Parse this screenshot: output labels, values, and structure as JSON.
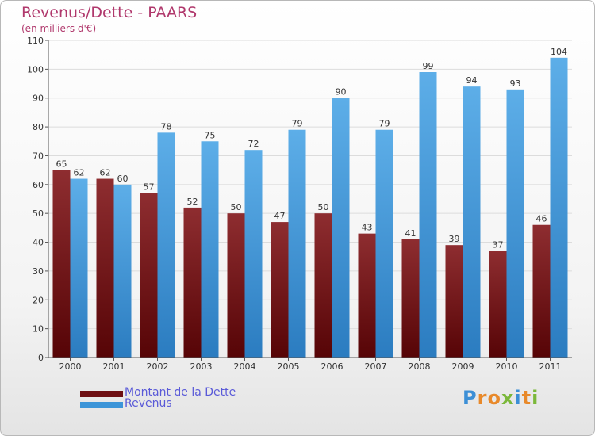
{
  "chart_data": {
    "type": "bar",
    "title": "Revenus/Dette - PAARS",
    "subtitle": "(en milliers d'€)",
    "categories": [
      "2000",
      "2001",
      "2002",
      "2003",
      "2004",
      "2005",
      "2006",
      "2007",
      "2008",
      "2009",
      "2010",
      "2011"
    ],
    "series": [
      {
        "name": "Montant de la Dette",
        "values": [
          65,
          62,
          57,
          52,
          50,
          47,
          50,
          43,
          41,
          39,
          37,
          46
        ],
        "color": "#6e0f12"
      },
      {
        "name": "Revenus",
        "values": [
          62,
          60,
          78,
          75,
          72,
          79,
          90,
          79,
          99,
          94,
          93,
          104
        ],
        "color": "#3d95d8"
      }
    ],
    "ylim": [
      0,
      110
    ],
    "yticks": [
      0,
      10,
      20,
      30,
      40,
      50,
      60,
      70,
      80,
      90,
      100,
      110
    ],
    "grid": true,
    "legend": "bottom-left"
  },
  "logo": {
    "text": "Proxiti"
  }
}
